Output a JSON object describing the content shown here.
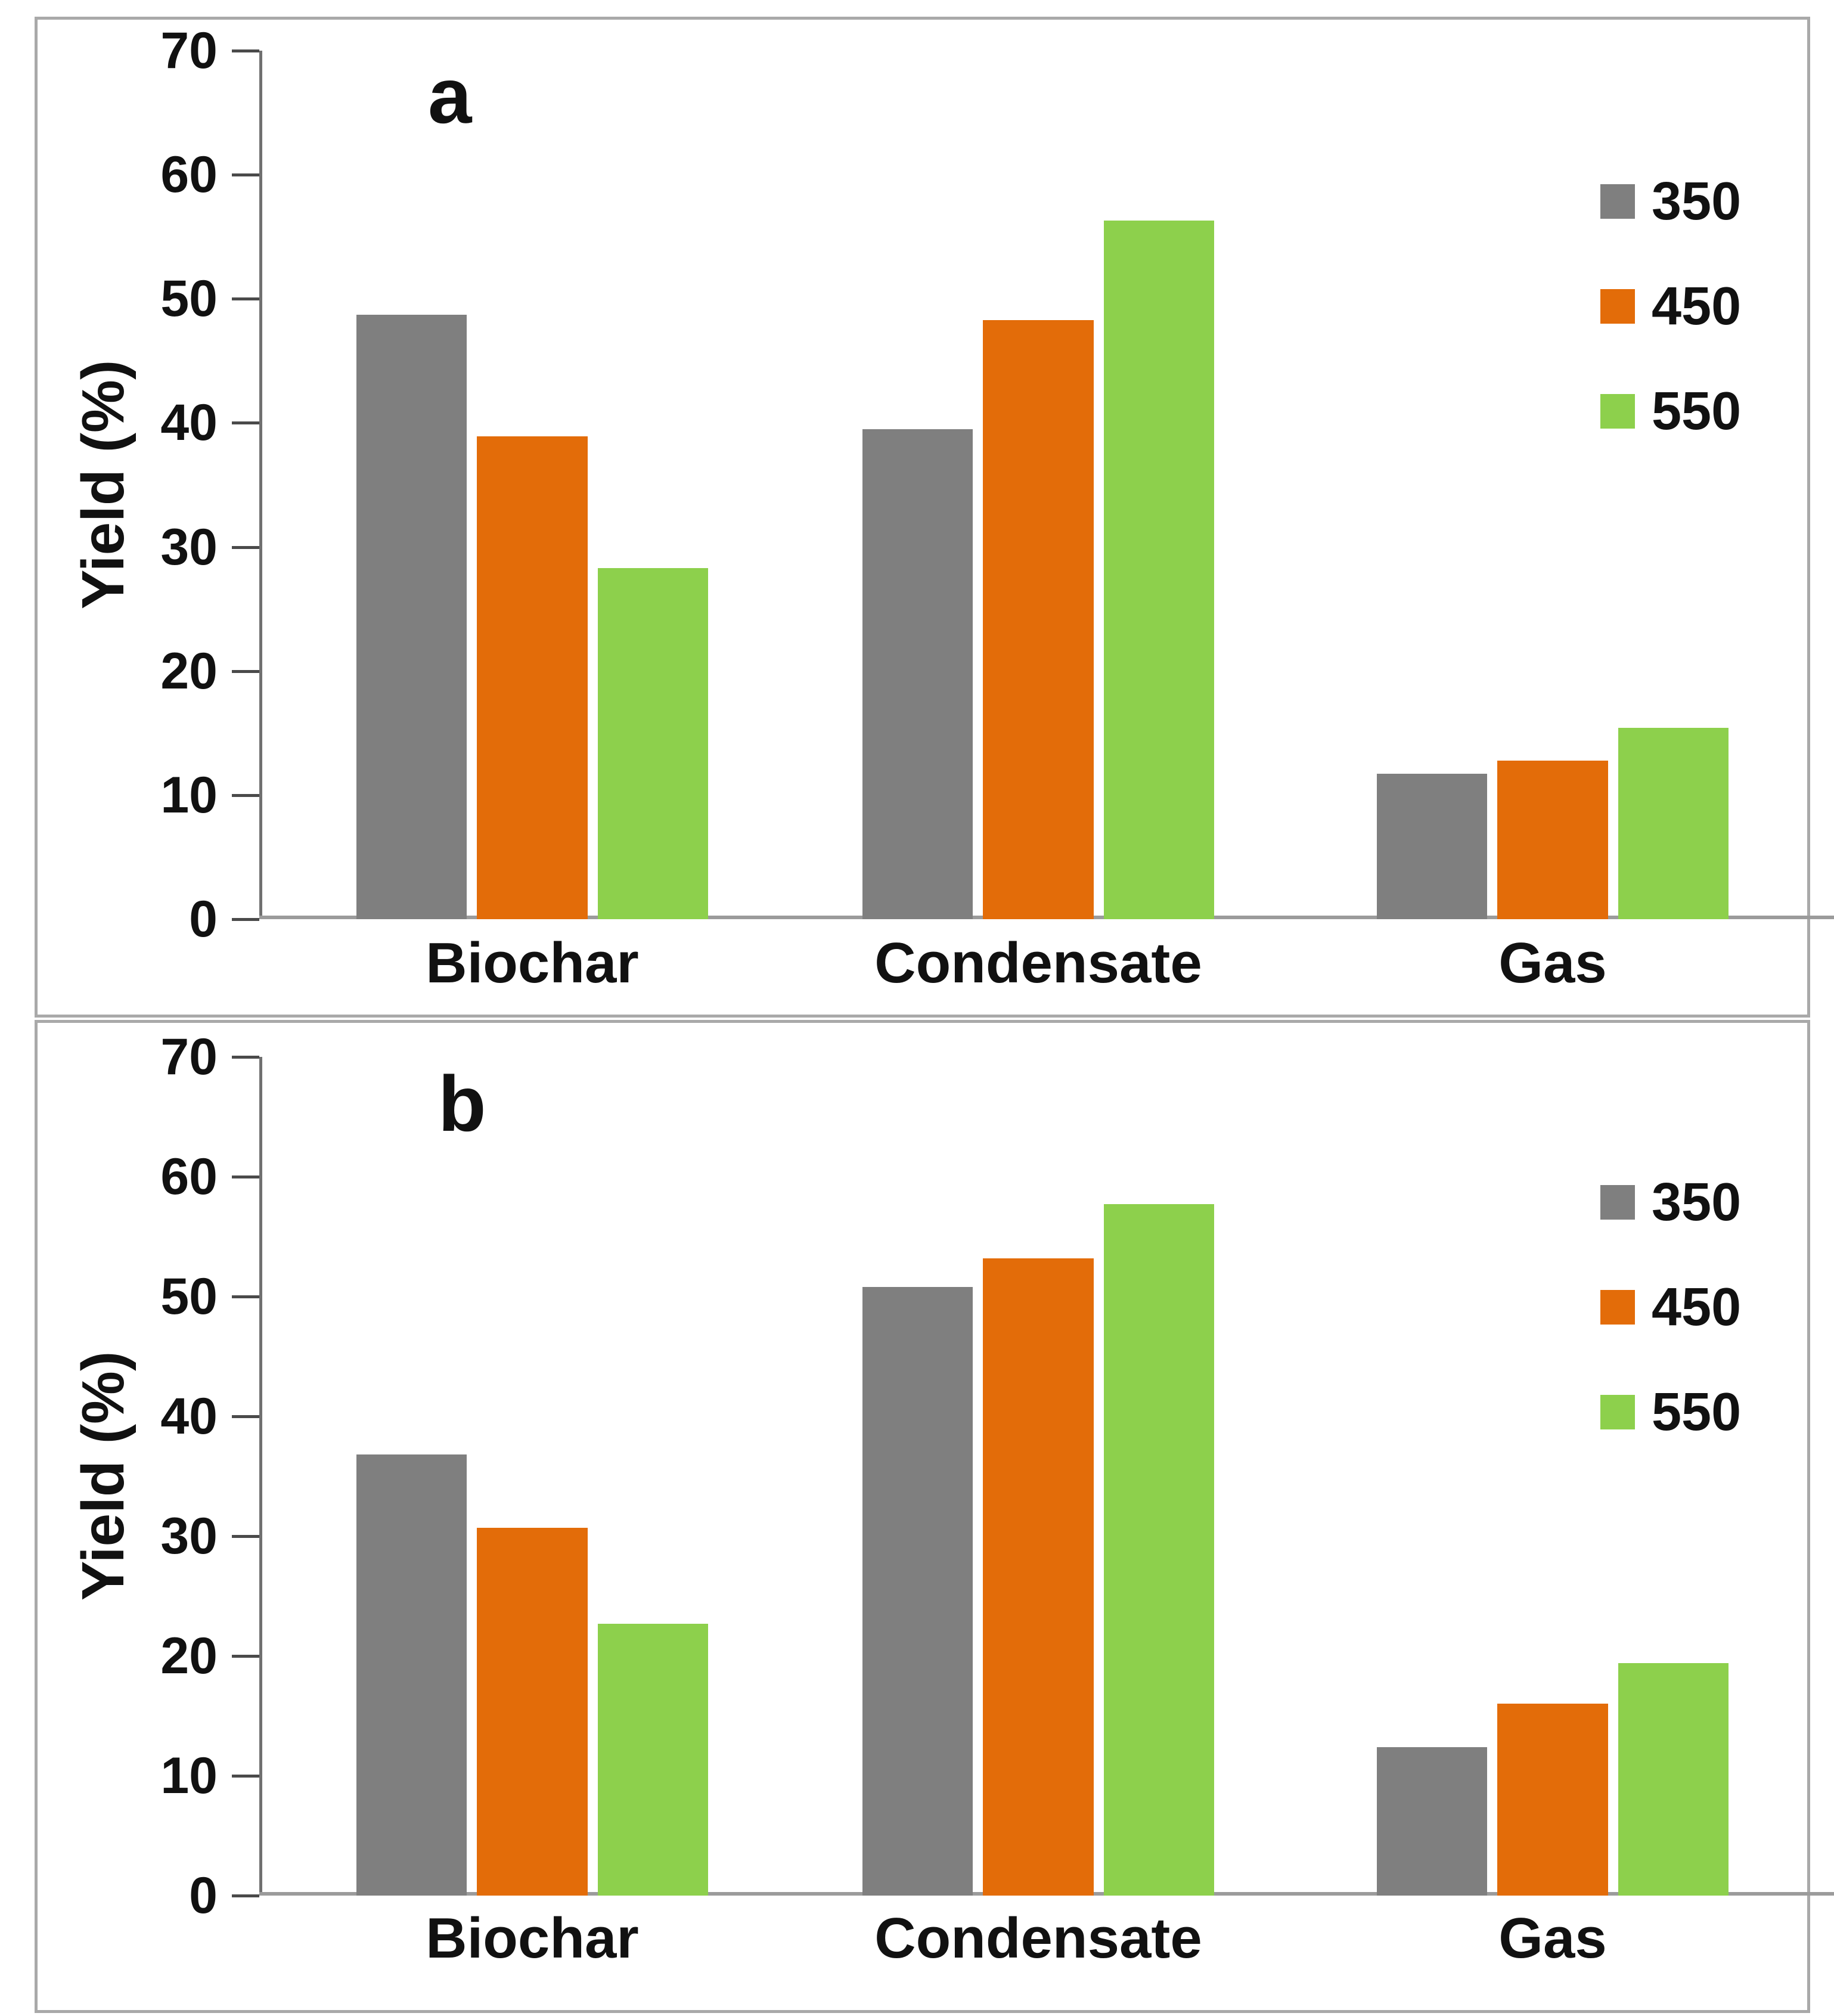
{
  "figure": {
    "background": "#ffffff",
    "panel_border_color": "#a9a9a9",
    "axis_line_color": "#707070",
    "baseline_color": "#9b9b9b",
    "text_color": "#111111"
  },
  "chart_data": [
    {
      "type": "bar",
      "panel_label": "a",
      "title": "",
      "xlabel": "",
      "ylabel": "Yield (%)",
      "categories": [
        "Biochar",
        "Condensate",
        "Gas"
      ],
      "series": [
        {
          "name": "350",
          "color": "#7f7f7f",
          "values": [
            48.7,
            39.5,
            11.7
          ]
        },
        {
          "name": "450",
          "color": "#e36c09",
          "values": [
            38.9,
            48.3,
            12.8
          ]
        },
        {
          "name": "550",
          "color": "#8dd04c",
          "values": [
            28.3,
            56.3,
            15.4
          ]
        }
      ],
      "ylim": [
        0,
        70
      ],
      "yticks": [
        0,
        10,
        20,
        30,
        40,
        50,
        60,
        70
      ],
      "grid": false,
      "legend_position": "upper-right"
    },
    {
      "type": "bar",
      "panel_label": "b",
      "title": "",
      "xlabel": "",
      "ylabel": "Yield (%)",
      "categories": [
        "Biochar",
        "Condensate",
        "Gas"
      ],
      "series": [
        {
          "name": "350",
          "color": "#7f7f7f",
          "values": [
            36.8,
            50.8,
            12.4
          ]
        },
        {
          "name": "450",
          "color": "#e36c09",
          "values": [
            30.7,
            53.2,
            16.0
          ]
        },
        {
          "name": "550",
          "color": "#8dd04c",
          "values": [
            22.7,
            57.7,
            19.4
          ]
        }
      ],
      "ylim": [
        0,
        70
      ],
      "yticks": [
        0,
        10,
        20,
        30,
        40,
        50,
        60,
        70
      ],
      "grid": false,
      "legend_position": "upper-right"
    }
  ]
}
